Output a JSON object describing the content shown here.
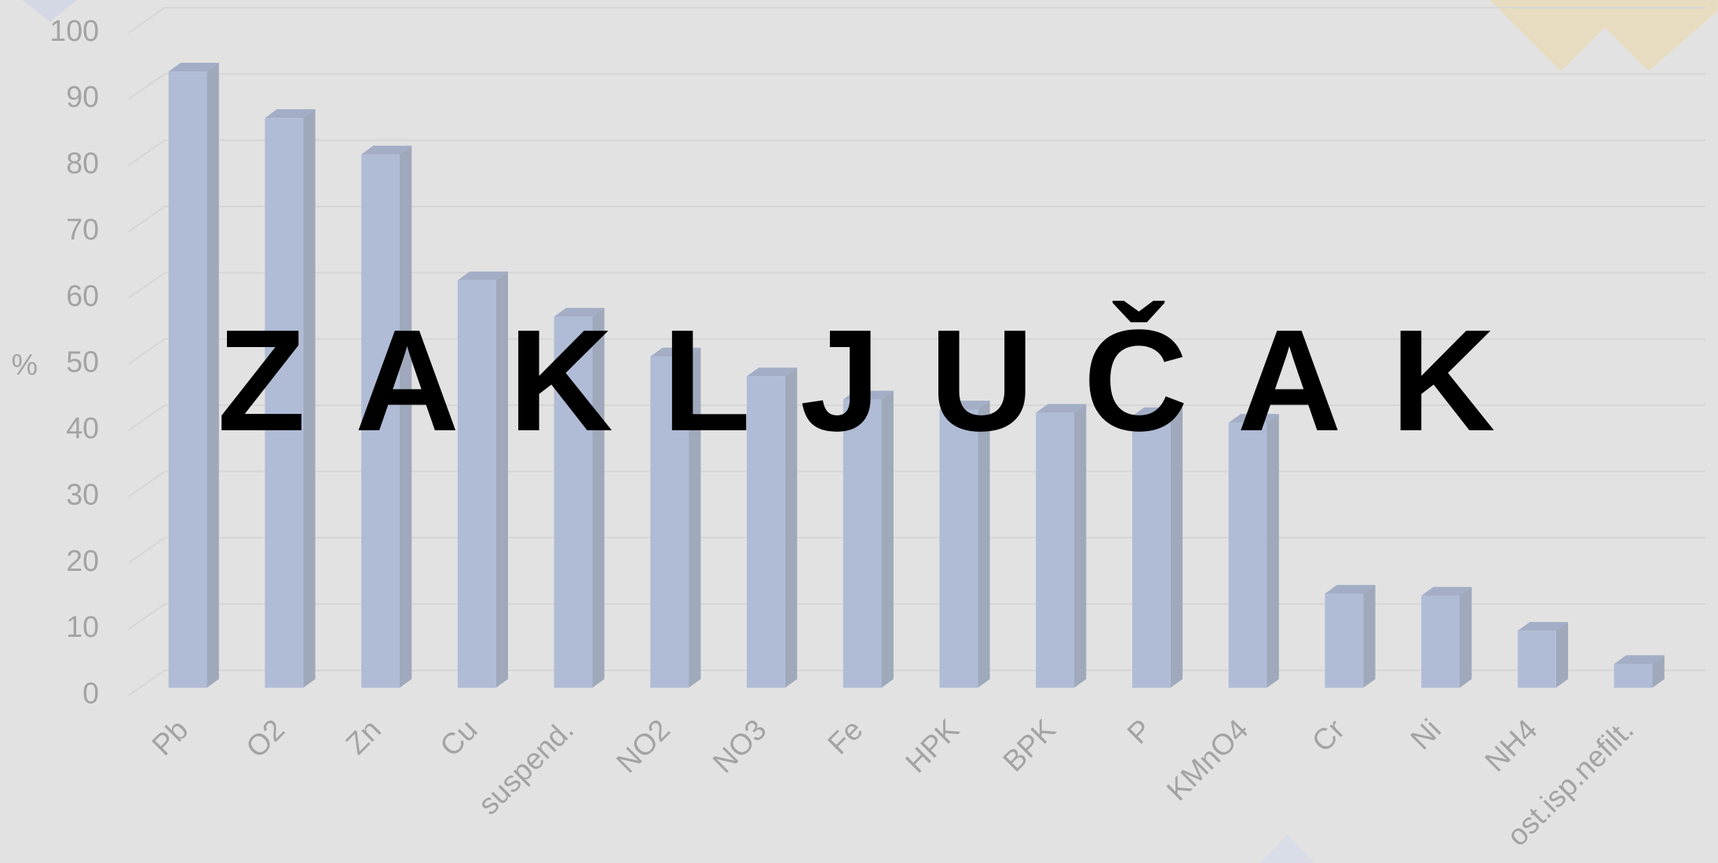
{
  "chart_data": {
    "type": "bar",
    "title": "ZAKLJUČAK",
    "ylabel": "%",
    "categories": [
      "Pb",
      "O2",
      "Zn",
      "Cu",
      "suspend.",
      "NO2",
      "NO3",
      "Fe",
      "HPK",
      "BPK",
      "P",
      "KMnO4",
      "Cr",
      "Ni",
      "NH4",
      "ost.isp.nefilt."
    ],
    "values": [
      93,
      86,
      80.5,
      61.5,
      56,
      50,
      47,
      43.5,
      42,
      41.5,
      41,
      40,
      14.2,
      13.9,
      8.6,
      3.6
    ],
    "color": "#b0bcd6",
    "ylim": [
      0,
      100
    ],
    "yticks": [
      0,
      10,
      20,
      30,
      40,
      50,
      60,
      70,
      80,
      90,
      100
    ],
    "grid": true
  }
}
